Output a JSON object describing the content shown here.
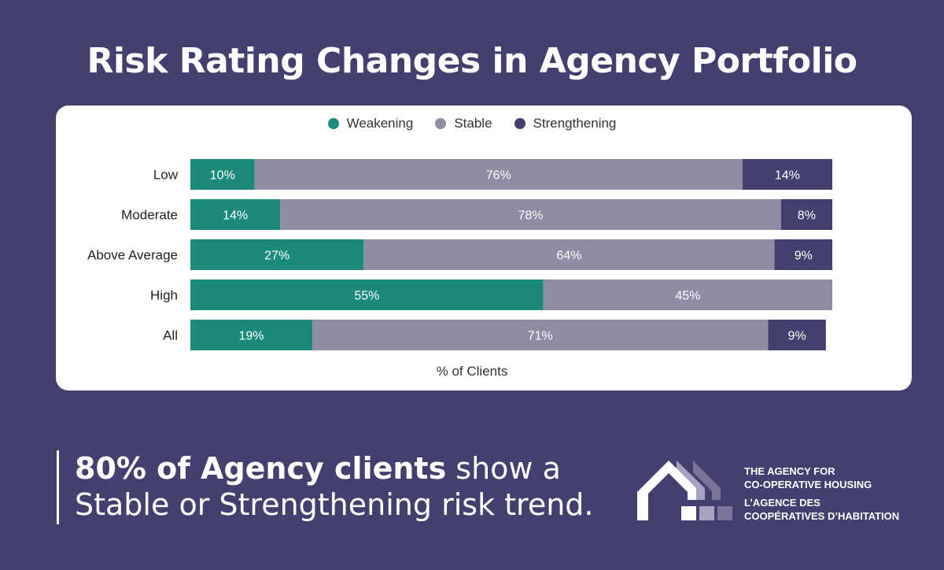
{
  "title": "Risk Rating Changes in Agency Portfolio",
  "colors": {
    "background": "#433f6e",
    "weakening": "#1b8a7a",
    "stable": "#8f8ca3",
    "strengthening": "#433f6e"
  },
  "chart_data": {
    "type": "bar",
    "orientation": "horizontal-stacked-100",
    "title": "Risk Rating Changes in Agency Portfolio",
    "xlabel": "% of Clients",
    "ylabel": "",
    "xlim": [
      0,
      100
    ],
    "legend_position": "top-center",
    "grid": false,
    "categories": [
      "Low",
      "Moderate",
      "Above Average",
      "High",
      "All"
    ],
    "series": [
      {
        "name": "Weakening",
        "color": "#1b8a7a",
        "values": [
          10,
          14,
          27,
          55,
          19
        ]
      },
      {
        "name": "Stable",
        "color": "#8f8ca3",
        "values": [
          76,
          78,
          64,
          45,
          71
        ]
      },
      {
        "name": "Strengthening",
        "color": "#433f6e",
        "values": [
          14,
          8,
          9,
          0,
          9
        ]
      }
    ]
  },
  "callout": {
    "bold": "80% of Agency clients",
    "rest_line1": " show a",
    "line2": "Stable or Strengthening risk trend."
  },
  "logo": {
    "line1": "THE AGENCY FOR",
    "line2": "CO-OPERATIVE HOUSING",
    "line3": "L’AGENCE DES",
    "line4": "COOPÉRATIVES D’HABITATION"
  }
}
